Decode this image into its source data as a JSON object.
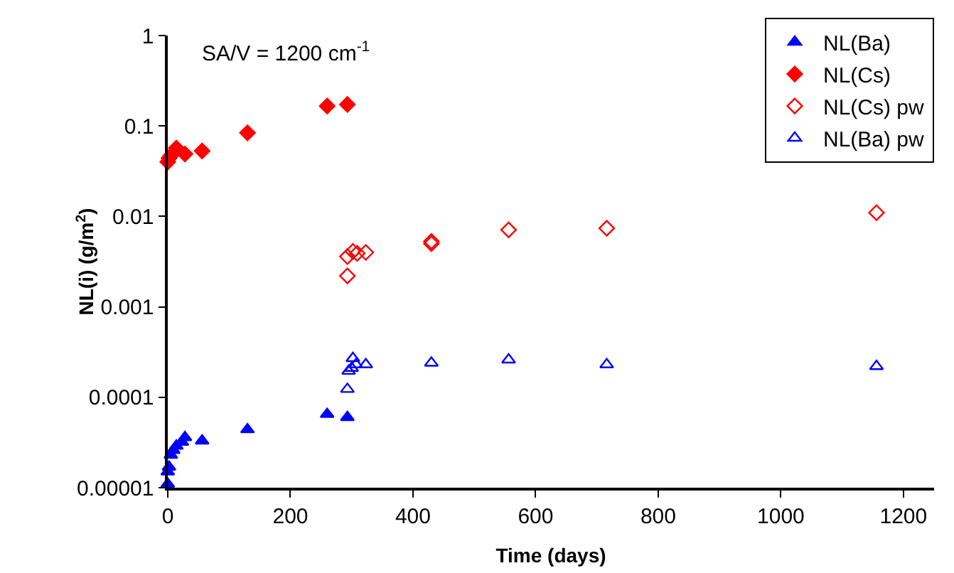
{
  "chart_data": {
    "type": "scatter",
    "xlabel": "Time (days)",
    "ylabel": "NL(i) (g/m$^{2}$)",
    "annotations": [
      "SA/V = 1200 cm$^{-1}$"
    ],
    "log": "y",
    "grid": false,
    "legend": "top right",
    "xlim": [
      0,
      1250
    ],
    "xticks": [
      0,
      200,
      400,
      600,
      800,
      1000,
      1200
    ],
    "ylim": [
      1e-05,
      1
    ],
    "yticks": [
      {
        "value": 1e-05,
        "label": "0.00001"
      },
      0.0001,
      0.001,
      0.01,
      0.1,
      1
    ],
    "series": [
      {
        "name": "NL(Ba)",
        "color": "#0000ff",
        "marker": "triangle",
        "x": [
          0,
          0,
          2,
          5,
          9,
          14,
          23,
          28,
          56,
          130,
          260,
          293
        ],
        "values": [
          1.1e-05,
          1.5e-05,
          1.7e-05,
          2.3e-05,
          2.6e-05,
          2.9e-05,
          3.2e-05,
          3.6e-05,
          3.3e-05,
          4.4e-05,
          6.5e-05,
          6e-05
        ]
      },
      {
        "name": "NL(Cs)",
        "color": "#ff0000",
        "marker": "diamond",
        "x": [
          0,
          2,
          5,
          14,
          28,
          56,
          130,
          260,
          293
        ],
        "values": [
          0.04,
          0.044,
          0.047,
          0.057,
          0.049,
          0.053,
          0.084,
          0.166,
          0.173
        ]
      },
      {
        "name": "NL(Cs) pw",
        "color": "#ff0000",
        "marker": "diamond-open",
        "x": [
          293,
          293,
          302,
          309,
          323,
          430,
          430,
          556,
          716,
          1156
        ],
        "values": [
          0.0022,
          0.0036,
          0.0041,
          0.0039,
          0.004,
          0.0053,
          0.005,
          0.0071,
          0.0074,
          0.011
        ]
      },
      {
        "name": "NL(Ba) pw",
        "color": "#0000ff",
        "marker": "triangle-open",
        "x": [
          293,
          295,
          300,
          302,
          307,
          323,
          430,
          556,
          716,
          1156
        ],
        "values": [
          0.000123,
          0.000195,
          0.00021,
          0.00027,
          0.00023,
          0.00023,
          0.00024,
          0.00026,
          0.00023,
          0.00022
        ]
      }
    ]
  }
}
